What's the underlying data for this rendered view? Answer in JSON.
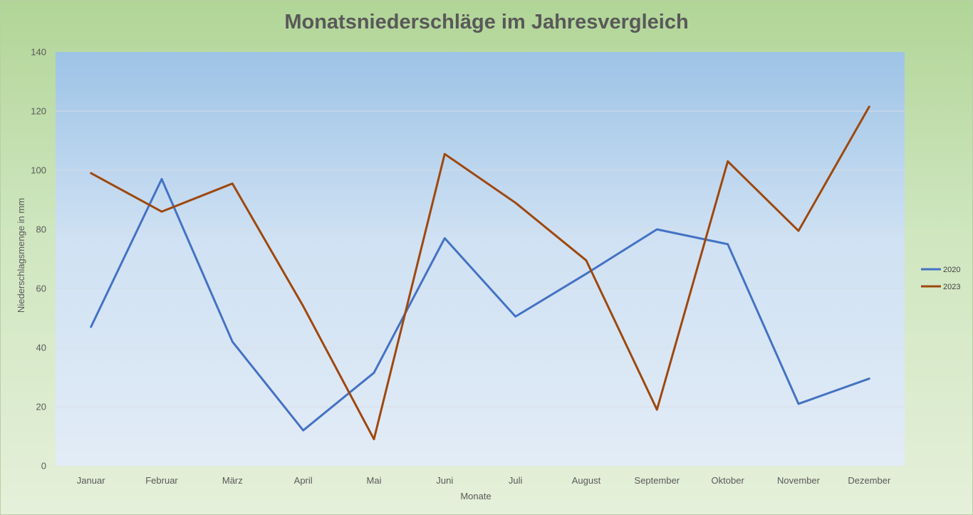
{
  "chart_data": {
    "type": "line",
    "title": "Monatsniederschläge im Jahresvergleich",
    "xlabel": "Monate",
    "ylabel": "Niederschlagsmenge in mm",
    "ylim": [
      0,
      140
    ],
    "yticks": [
      0,
      20,
      40,
      60,
      80,
      100,
      120,
      140
    ],
    "grid": true,
    "legend_position": "right",
    "categories": [
      "Januar",
      "Februar",
      "März",
      "April",
      "Mai",
      "Juni",
      "Juli",
      "August",
      "September",
      "Oktober",
      "November",
      "Dezember"
    ],
    "series": [
      {
        "name": "2020",
        "color": "#4472c4",
        "values": [
          47,
          97,
          42,
          12,
          31.5,
          77,
          50.5,
          65,
          80,
          75,
          21,
          29.5
        ]
      },
      {
        "name": "2023",
        "color": "#9e480e",
        "values": [
          99,
          86,
          95.5,
          54,
          9,
          105.5,
          89,
          69.5,
          19,
          103,
          79.5,
          121.5
        ]
      }
    ]
  }
}
